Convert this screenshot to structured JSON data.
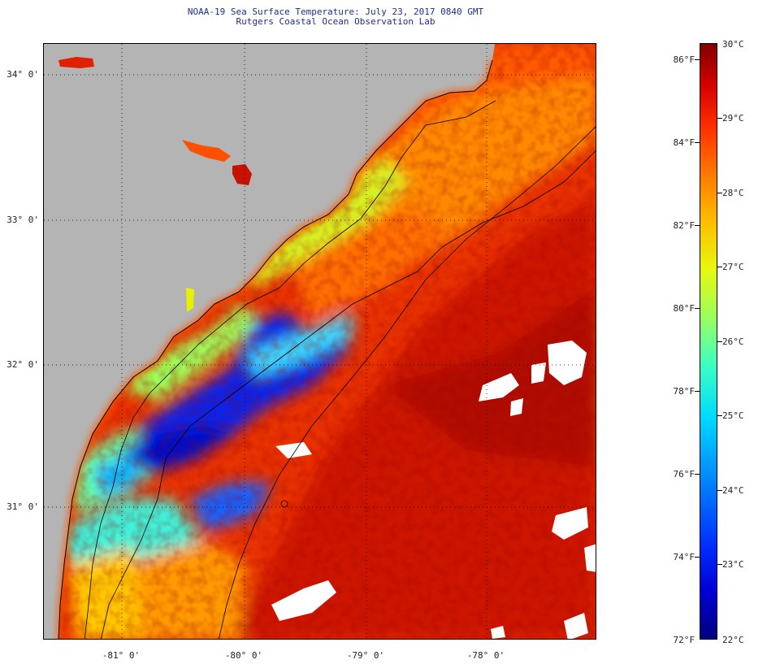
{
  "title": {
    "line1": "NOAA-19 Sea Surface Temperature:  July 23, 2017 0840 GMT",
    "line2": "Rutgers Coastal Ocean Observation Lab"
  },
  "map": {
    "latitude_labels": [
      "34° 0'",
      "33° 0'",
      "32° 0'",
      "31° 0'"
    ],
    "longitude_labels": [
      "-81° 0'",
      "-80° 0'",
      "-79° 0'",
      "-78° 0'"
    ],
    "land_color": "#b4b4b4",
    "cloud_color": "#ffffff",
    "coastline_color": "#000000"
  },
  "colorbar": {
    "fahrenheit_labels": [
      "86°F",
      "84°F",
      "82°F",
      "80°F",
      "78°F",
      "76°F",
      "74°F",
      "72°F"
    ],
    "celsius_labels": [
      "30°C",
      "29°C",
      "28°C",
      "27°C",
      "26°C",
      "25°C",
      "24°C",
      "23°C",
      "22°C"
    ],
    "min_celsius": 22,
    "max_celsius": 30,
    "min_fahrenheit": 72,
    "max_fahrenheit": 86
  }
}
